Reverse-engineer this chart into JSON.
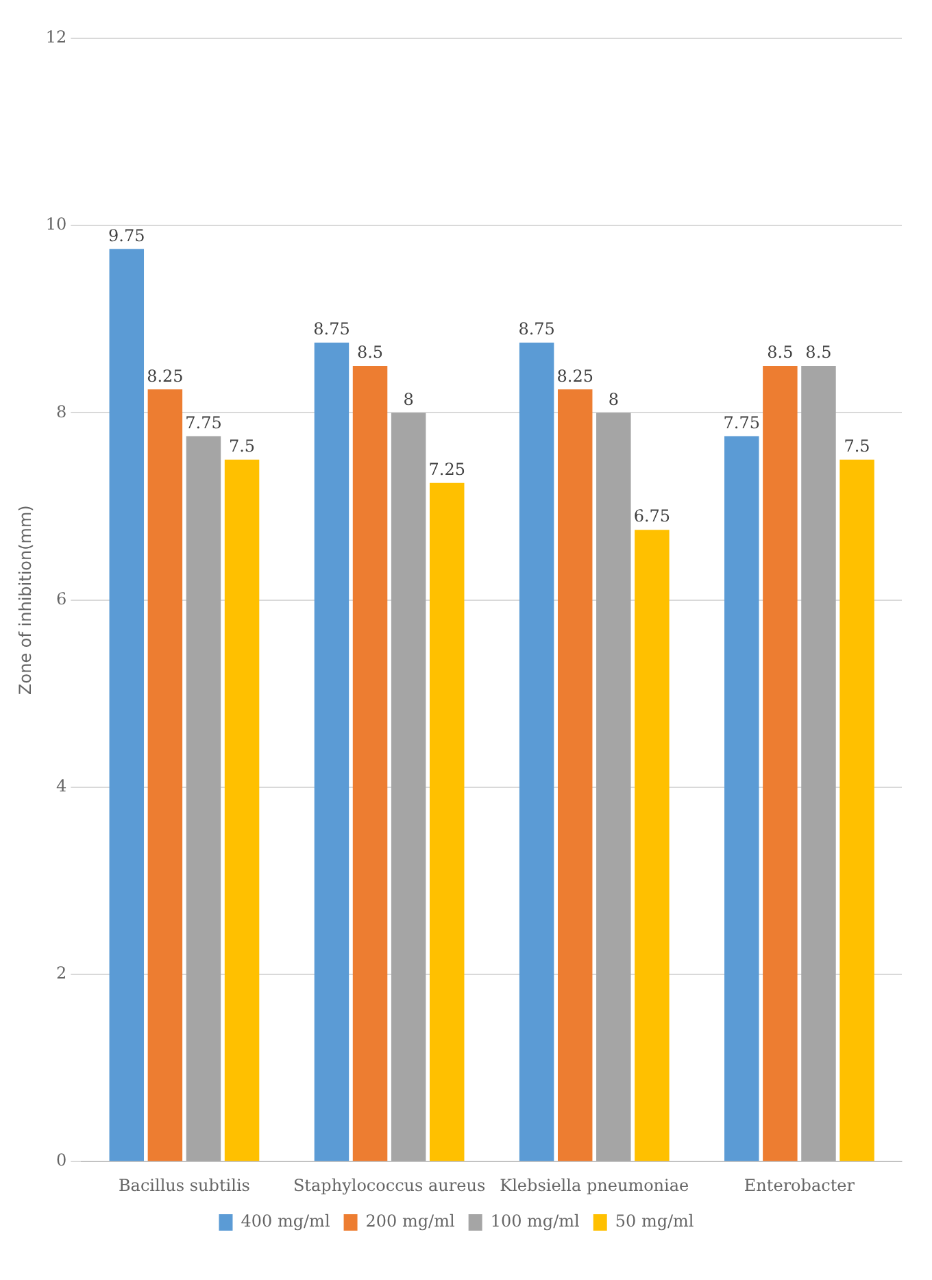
{
  "chart_data": {
    "type": "bar",
    "ylabel": "Zone of inhibition(mm)",
    "categories": [
      "Bacillus subtilis",
      "Staphylococcus aureus",
      "Klebsiella pneumoniae",
      "Enterobacter"
    ],
    "series": [
      {
        "name": "400 mg/ml",
        "color": "#5b9bd5",
        "values": [
          9.75,
          8.75,
          8.75,
          7.75
        ]
      },
      {
        "name": "200 mg/ml",
        "color": "#ed7d31",
        "values": [
          8.25,
          8.5,
          8.25,
          8.5
        ]
      },
      {
        "name": "100 mg/ml",
        "color": "#a5a5a5",
        "values": [
          7.75,
          8,
          8,
          8.5
        ]
      },
      {
        "name": "50 mg/ml",
        "color": "#ffc000",
        "values": [
          7.5,
          7.25,
          6.75,
          7.5
        ]
      }
    ],
    "ylim": [
      0,
      12
    ],
    "yticks": [
      0,
      2,
      4,
      6,
      8,
      10,
      12
    ],
    "grid": "y",
    "legend": "bottom",
    "data_labels": true
  }
}
